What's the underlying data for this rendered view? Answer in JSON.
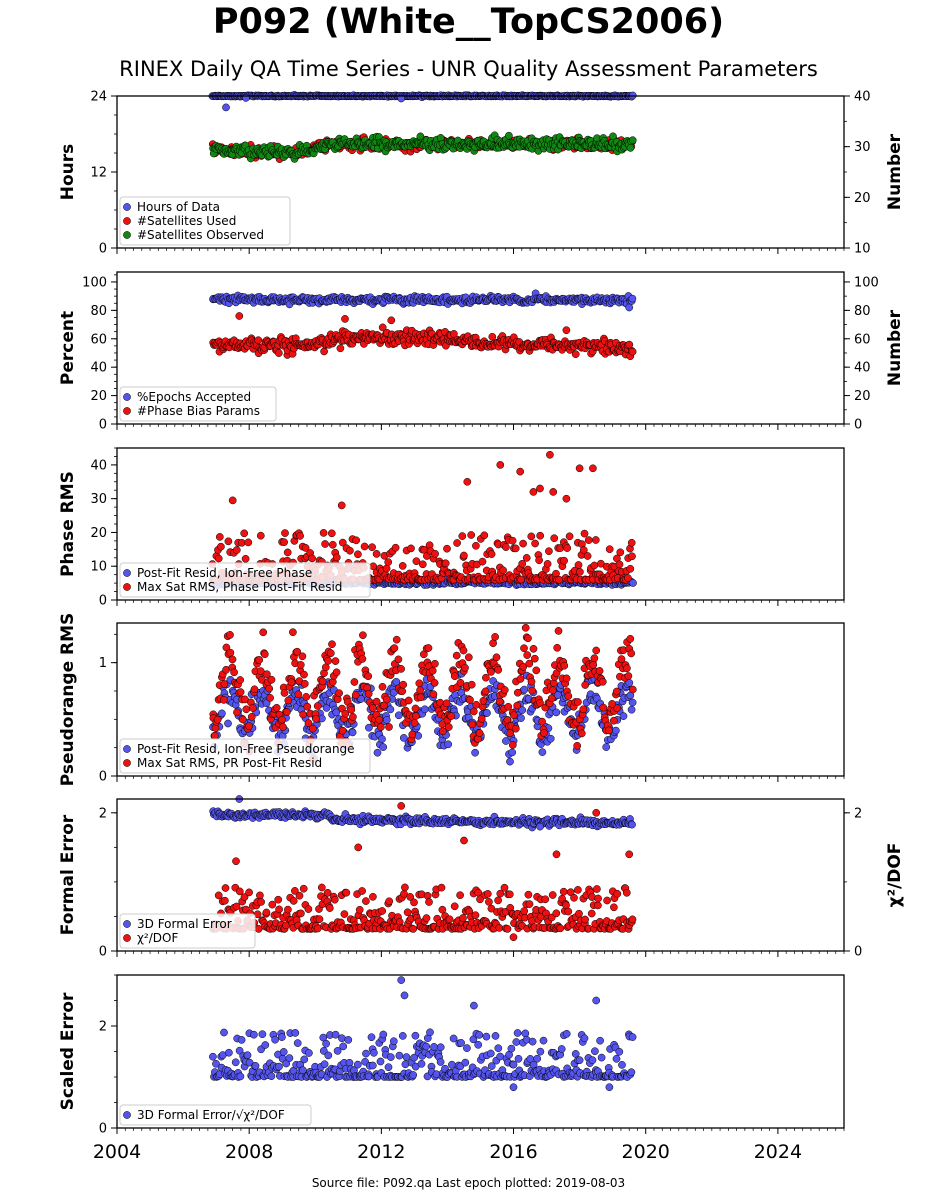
{
  "page": {
    "title": "P092 (White__TopCS2006)",
    "subtitle": "RINEX Daily QA Time Series - UNR Quality Assessment Parameters",
    "source": "Source file: P092.qa Last epoch plotted: 2019-08-03"
  },
  "colors": {
    "blue": "#5555ee",
    "red": "#ee1111",
    "green": "#118811",
    "edge": "#000000"
  },
  "chart_data": [
    {
      "type": "scatter",
      "panel": "hours",
      "xlim": [
        2004,
        2026
      ],
      "ylim": [
        0,
        24
      ],
      "yticks": [
        "0",
        "12",
        "24"
      ],
      "ylabel": "Hours",
      "y2lim": [
        10,
        40
      ],
      "y2ticks": [
        "10",
        "20",
        "30",
        "40"
      ],
      "y2label": "Number",
      "legend_position": "lower-left",
      "series": [
        {
          "name": "Hours of Data",
          "color": "blue",
          "axis": "left",
          "x_range": [
            2006.9,
            2019.6
          ],
          "model": "const",
          "params": {
            "base": 24.0,
            "jitter": 0.1,
            "outliers": [
              [
                2007.3,
                22.2
              ],
              [
                2007.9,
                23.7
              ],
              [
                2012.6,
                23.6
              ]
            ]
          }
        },
        {
          "name": "#Satellites Used",
          "color": "red",
          "axis": "right",
          "x_range": [
            2006.9,
            2019.6
          ],
          "model": "steps",
          "params": {
            "levels": [
              [
                2006.9,
                29.5
              ],
              [
                2009.3,
                28.5
              ],
              [
                2010.4,
                30.5
              ],
              [
                2019.6,
                30.5
              ]
            ],
            "jitter": 1.0
          }
        },
        {
          "name": "#Satellites Observed",
          "color": "green",
          "axis": "right",
          "x_range": [
            2006.9,
            2019.6
          ],
          "model": "steps",
          "params": {
            "levels": [
              [
                2006.9,
                29.5
              ],
              [
                2009.3,
                28.5
              ],
              [
                2010.4,
                30.5
              ],
              [
                2019.6,
                30.5
              ]
            ],
            "jitter": 1.2
          }
        }
      ]
    },
    {
      "type": "scatter",
      "panel": "percent",
      "xlim": [
        2004,
        2026
      ],
      "ylim": [
        0,
        107
      ],
      "yticks": [
        "0",
        "20",
        "40",
        "60",
        "80",
        "100"
      ],
      "ylabel": "Percent",
      "y2ticks": [
        "0",
        "20",
        "40",
        "60",
        "80",
        "100"
      ],
      "y2label": "Number",
      "legend_position": "lower-left",
      "series": [
        {
          "name": "%Epochs Accepted",
          "color": "blue",
          "axis": "left",
          "x_range": [
            2006.9,
            2019.6
          ],
          "model": "const",
          "params": {
            "base": 87.5,
            "jitter": 2.5,
            "outliers": [
              [
                2019.5,
                82.0
              ]
            ]
          }
        },
        {
          "name": "#Phase Bias Params",
          "color": "red",
          "axis": "left",
          "x_range": [
            2006.9,
            2019.6
          ],
          "model": "steps",
          "params": {
            "levels": [
              [
                2006.9,
                56.0
              ],
              [
                2010.0,
                56.0
              ],
              [
                2011.0,
                61.0
              ],
              [
                2013.0,
                62.0
              ],
              [
                2015.0,
                57.0
              ],
              [
                2019.6,
                54.0
              ]
            ],
            "jitter": 5.0,
            "outliers": [
              [
                2007.7,
                76.0
              ],
              [
                2010.9,
                74.0
              ],
              [
                2012.3,
                73.0
              ],
              [
                2017.6,
                66.0
              ]
            ]
          }
        }
      ]
    },
    {
      "type": "scatter",
      "panel": "phase-rms",
      "xlim": [
        2004,
        2026
      ],
      "ylim": [
        0,
        45
      ],
      "yticks": [
        "0",
        "10",
        "20",
        "30",
        "40"
      ],
      "ylabel": "Phase RMS",
      "legend_position": "lower-left",
      "series": [
        {
          "name": "Post-Fit Resid, Ion-Free Phase",
          "color": "blue",
          "axis": "left",
          "x_range": [
            2006.9,
            2019.6
          ],
          "model": "const",
          "params": {
            "base": 5.2,
            "jitter": 0.7
          }
        },
        {
          "name": "Max Sat RMS, Phase Post-Fit Resid",
          "color": "red",
          "axis": "left",
          "x_range": [
            2006.9,
            2019.6
          ],
          "model": "skew",
          "params": {
            "base": 6.0,
            "spread": 14.0,
            "outliers": [
              [
                2007.5,
                29.5
              ],
              [
                2010.8,
                28.0
              ],
              [
                2014.6,
                35.0
              ],
              [
                2015.6,
                40.0
              ],
              [
                2016.2,
                38.0
              ],
              [
                2016.6,
                32.0
              ],
              [
                2016.8,
                33.0
              ],
              [
                2017.1,
                43.0
              ],
              [
                2017.2,
                32.0
              ],
              [
                2017.6,
                30.0
              ],
              [
                2018.0,
                39.0
              ],
              [
                2018.4,
                39.0
              ]
            ]
          }
        }
      ]
    },
    {
      "type": "scatter",
      "panel": "pseudorange-rms",
      "xlim": [
        2004,
        2026
      ],
      "ylim": [
        0,
        1.35
      ],
      "yticks": [
        "0",
        "1"
      ],
      "ylabel": "Pseudorange RMS",
      "legend_position": "lower-left",
      "series": [
        {
          "name": "Post-Fit Resid, Ion-Free Pseudorange",
          "color": "blue",
          "axis": "left",
          "x_range": [
            2006.9,
            2019.6
          ],
          "model": "seasonal",
          "params": {
            "mid": 0.55,
            "amp": 0.2,
            "jitter": 0.09
          }
        },
        {
          "name": "Max Sat RMS, PR Post-Fit Resid",
          "color": "red",
          "axis": "left",
          "x_range": [
            2006.9,
            2019.6
          ],
          "model": "seasonal",
          "params": {
            "mid": 0.75,
            "amp": 0.3,
            "jitter": 0.12
          }
        }
      ]
    },
    {
      "type": "scatter",
      "panel": "formal-error",
      "xlim": [
        2004,
        2026
      ],
      "ylim": [
        0,
        2.2
      ],
      "yticks": [
        "0",
        "2"
      ],
      "ylabel": "Formal Error",
      "y2ticks": [
        "0",
        "2"
      ],
      "y2label": "χ²/DOF",
      "legend_position": "lower-left",
      "series": [
        {
          "name": "3D Formal Error",
          "color": "blue",
          "axis": "left",
          "x_range": [
            2006.9,
            2019.6
          ],
          "model": "steps",
          "params": {
            "levels": [
              [
                2006.9,
                1.97
              ],
              [
                2010.4,
                1.97
              ],
              [
                2010.5,
                1.9
              ],
              [
                2019.6,
                1.85
              ]
            ],
            "jitter": 0.05,
            "outliers": [
              [
                2007.7,
                2.2
              ],
              [
                2016.8,
                1.8
              ]
            ]
          }
        },
        {
          "name": "χ²/DOF",
          "color": "red",
          "axis": "left",
          "x_range": [
            2006.9,
            2019.6
          ],
          "model": "skew",
          "params": {
            "base": 0.32,
            "spread": 0.6,
            "outliers": [
              [
                2007.6,
                1.3
              ],
              [
                2011.3,
                1.5
              ],
              [
                2012.6,
                2.1
              ],
              [
                2014.5,
                1.6
              ],
              [
                2016.0,
                0.2
              ],
              [
                2017.3,
                1.4
              ],
              [
                2018.5,
                2.0
              ],
              [
                2019.5,
                1.4
              ]
            ]
          }
        }
      ]
    },
    {
      "type": "scatter",
      "panel": "scaled-error",
      "xlim": [
        2004,
        2026
      ],
      "ylim": [
        0,
        3.0
      ],
      "yticks": [
        "0",
        "2"
      ],
      "ylabel": "Scaled Error",
      "xticks": [
        "2004",
        "2008",
        "2012",
        "2016",
        "2020",
        "2024"
      ],
      "legend_position": "lower-left",
      "series": [
        {
          "name": "3D Formal Error/√χ²/DOF",
          "color": "blue",
          "axis": "left",
          "x_range": [
            2006.9,
            2019.6
          ],
          "model": "skew",
          "params": {
            "base": 1.0,
            "spread": 0.9,
            "outliers": [
              [
                2012.6,
                2.9
              ],
              [
                2012.7,
                2.6
              ],
              [
                2014.8,
                2.4
              ],
              [
                2016.0,
                0.8
              ],
              [
                2018.5,
                2.5
              ],
              [
                2018.9,
                0.8
              ]
            ]
          }
        }
      ]
    }
  ]
}
